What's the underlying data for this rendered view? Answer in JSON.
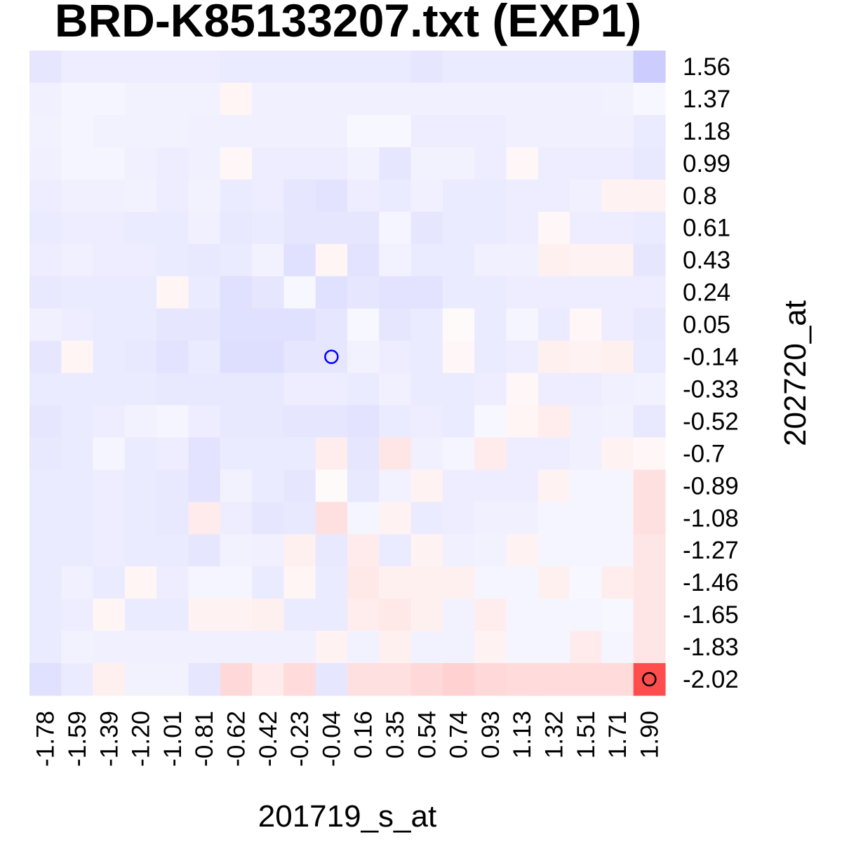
{
  "chart_data": {
    "type": "heatmap",
    "title": "BRD-K85133207.txt (EXP1)",
    "xlabel": "201719_s_at",
    "ylabel": "202720_at",
    "x_ticks": [
      "-1.78",
      "-1.59",
      "-1.39",
      "-1.20",
      "-1.01",
      "-0.81",
      "-0.62",
      "-0.42",
      "-0.23",
      "-0.04",
      "0.16",
      "0.35",
      "0.54",
      "0.74",
      "0.93",
      "1.13",
      "1.32",
      "1.51",
      "1.71",
      "1.90"
    ],
    "y_ticks": [
      "1.56",
      "1.37",
      "1.18",
      "0.99",
      "0.8",
      "0.61",
      "0.43",
      "0.24",
      "0.05",
      "-0.14",
      "-0.33",
      "-0.52",
      "-0.7",
      "-0.89",
      "-1.08",
      "-1.27",
      "-1.46",
      "-1.65",
      "-1.83",
      "-2.02"
    ],
    "value_range": [
      -1,
      1
    ],
    "colors": {
      "low": "#0000ff",
      "mid": "#ffffff",
      "high": "#ff0000"
    },
    "values": [
      [
        -0.1,
        -0.07,
        -0.07,
        -0.07,
        -0.07,
        -0.07,
        -0.08,
        -0.08,
        -0.08,
        -0.08,
        -0.08,
        -0.08,
        -0.1,
        -0.08,
        -0.08,
        -0.08,
        -0.08,
        -0.08,
        -0.08,
        -0.2
      ],
      [
        -0.06,
        -0.04,
        -0.04,
        -0.05,
        -0.05,
        -0.05,
        0.04,
        -0.06,
        -0.06,
        -0.06,
        -0.06,
        -0.06,
        -0.06,
        -0.06,
        -0.06,
        -0.06,
        -0.06,
        -0.06,
        -0.05,
        -0.03
      ],
      [
        -0.05,
        -0.04,
        -0.05,
        -0.05,
        -0.05,
        -0.06,
        -0.06,
        -0.06,
        -0.06,
        -0.06,
        -0.03,
        -0.03,
        -0.07,
        -0.07,
        -0.07,
        -0.06,
        -0.06,
        -0.06,
        -0.06,
        -0.08
      ],
      [
        -0.06,
        -0.04,
        -0.04,
        -0.06,
        -0.07,
        -0.06,
        0.03,
        -0.07,
        -0.07,
        -0.07,
        -0.05,
        -0.1,
        -0.05,
        -0.05,
        -0.07,
        0.03,
        -0.07,
        -0.07,
        -0.07,
        -0.09
      ],
      [
        -0.07,
        -0.06,
        -0.06,
        -0.05,
        -0.07,
        -0.05,
        -0.08,
        -0.07,
        -0.1,
        -0.11,
        -0.07,
        -0.08,
        -0.06,
        -0.08,
        -0.08,
        -0.07,
        -0.07,
        -0.06,
        0.05,
        0.05
      ],
      [
        -0.08,
        -0.07,
        -0.07,
        -0.08,
        -0.08,
        -0.06,
        -0.09,
        -0.08,
        -0.1,
        -0.1,
        -0.1,
        -0.04,
        -0.1,
        -0.08,
        -0.08,
        -0.07,
        0.03,
        -0.07,
        -0.07,
        -0.08
      ],
      [
        -0.07,
        -0.06,
        -0.07,
        -0.07,
        -0.08,
        -0.09,
        -0.08,
        -0.05,
        -0.12,
        0.04,
        -0.11,
        -0.05,
        -0.08,
        -0.08,
        -0.06,
        -0.06,
        0.06,
        0.05,
        0.05,
        -0.1
      ],
      [
        -0.09,
        -0.08,
        -0.08,
        -0.08,
        0.04,
        -0.08,
        -0.12,
        -0.1,
        -0.03,
        -0.12,
        -0.1,
        -0.11,
        -0.11,
        -0.08,
        -0.08,
        -0.07,
        -0.07,
        -0.07,
        -0.07,
        -0.07
      ],
      [
        -0.06,
        -0.07,
        -0.08,
        -0.08,
        -0.1,
        -0.1,
        -0.12,
        -0.12,
        -0.12,
        -0.1,
        -0.03,
        -0.1,
        -0.08,
        0.02,
        -0.08,
        -0.04,
        -0.08,
        0.03,
        -0.07,
        -0.09
      ],
      [
        -0.1,
        0.04,
        -0.08,
        -0.09,
        -0.11,
        -0.08,
        -0.13,
        -0.13,
        -0.1,
        -0.1,
        -0.05,
        -0.07,
        -0.08,
        0.03,
        -0.08,
        -0.07,
        0.06,
        0.05,
        0.06,
        -0.08
      ],
      [
        -0.08,
        -0.08,
        -0.08,
        -0.08,
        -0.09,
        -0.09,
        -0.09,
        -0.09,
        -0.07,
        -0.07,
        -0.08,
        -0.06,
        -0.08,
        -0.08,
        -0.07,
        0.03,
        -0.07,
        -0.07,
        -0.06,
        -0.05
      ],
      [
        -0.1,
        -0.08,
        -0.07,
        -0.05,
        -0.04,
        -0.07,
        -0.09,
        -0.09,
        -0.1,
        -0.1,
        -0.11,
        -0.08,
        -0.07,
        -0.08,
        -0.03,
        0.04,
        0.07,
        -0.06,
        -0.05,
        -0.09
      ],
      [
        -0.09,
        -0.08,
        -0.04,
        -0.08,
        -0.07,
        -0.11,
        -0.08,
        -0.08,
        -0.08,
        0.07,
        -0.1,
        0.1,
        -0.06,
        -0.04,
        0.08,
        -0.07,
        -0.07,
        -0.06,
        0.05,
        0.03
      ],
      [
        -0.08,
        -0.08,
        -0.07,
        -0.08,
        -0.09,
        -0.11,
        -0.05,
        -0.08,
        -0.1,
        0.02,
        -0.09,
        -0.05,
        0.05,
        -0.07,
        -0.07,
        -0.07,
        0.05,
        -0.04,
        -0.04,
        0.12
      ],
      [
        -0.08,
        -0.08,
        -0.07,
        -0.08,
        -0.09,
        0.08,
        -0.07,
        -0.1,
        -0.09,
        0.12,
        -0.04,
        0.05,
        -0.08,
        -0.07,
        -0.06,
        -0.06,
        -0.04,
        -0.04,
        -0.04,
        0.12
      ],
      [
        -0.08,
        -0.08,
        -0.07,
        -0.08,
        -0.08,
        -0.1,
        -0.05,
        -0.06,
        0.06,
        -0.09,
        0.08,
        -0.08,
        0.05,
        -0.06,
        -0.05,
        0.05,
        -0.04,
        -0.04,
        -0.04,
        0.1
      ],
      [
        -0.08,
        -0.06,
        -0.08,
        0.04,
        -0.07,
        -0.04,
        -0.04,
        -0.08,
        0.04,
        -0.08,
        0.09,
        0.06,
        0.06,
        0.06,
        -0.04,
        -0.04,
        0.06,
        -0.03,
        0.07,
        0.1
      ],
      [
        -0.08,
        -0.07,
        0.04,
        -0.08,
        -0.08,
        0.05,
        0.05,
        0.06,
        -0.08,
        -0.08,
        0.07,
        0.09,
        0.06,
        -0.05,
        0.07,
        -0.04,
        -0.04,
        -0.04,
        -0.03,
        0.1
      ],
      [
        -0.08,
        -0.05,
        -0.06,
        -0.06,
        -0.06,
        -0.06,
        -0.06,
        -0.06,
        -0.06,
        0.05,
        -0.05,
        0.06,
        -0.05,
        -0.05,
        0.05,
        -0.04,
        -0.04,
        0.08,
        -0.04,
        0.1
      ],
      [
        -0.12,
        -0.08,
        0.06,
        -0.05,
        -0.05,
        -0.1,
        0.15,
        0.08,
        0.14,
        -0.1,
        0.12,
        0.12,
        0.15,
        0.18,
        0.15,
        0.14,
        0.14,
        0.14,
        0.14,
        0.7
      ]
    ],
    "markers": [
      {
        "x": "-0.04",
        "y": "-0.14",
        "color": "#0000ff"
      },
      {
        "x": "1.90",
        "y": "-2.02",
        "color": "#000000"
      }
    ]
  }
}
